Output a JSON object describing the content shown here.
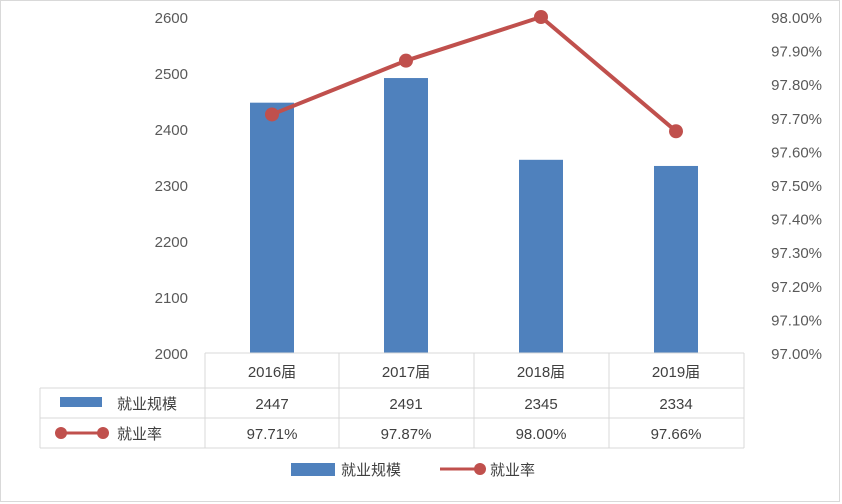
{
  "chart_data": {
    "type": "bar",
    "categories": [
      "2016届",
      "2017届",
      "2018届",
      "2019届"
    ],
    "series": [
      {
        "name": "就业规模",
        "type": "bar",
        "axis": "left",
        "values": [
          2447,
          2491,
          2345,
          2334
        ],
        "labels": [
          "2447",
          "2491",
          "2345",
          "2334"
        ],
        "color": "#4f81bd"
      },
      {
        "name": "就业率",
        "type": "line",
        "axis": "right",
        "values": [
          97.71,
          97.87,
          98.0,
          97.66
        ],
        "labels": [
          "97.71%",
          "97.87%",
          "98.00%",
          "97.66%"
        ],
        "color": "#c0504d"
      }
    ],
    "y_left": {
      "range": [
        2000,
        2600
      ],
      "ticks": [
        "2000",
        "2100",
        "2200",
        "2300",
        "2400",
        "2500",
        "2600"
      ]
    },
    "y_right": {
      "range": [
        97.0,
        98.0
      ],
      "ticks": [
        "97.00%",
        "97.10%",
        "97.20%",
        "97.30%",
        "97.40%",
        "97.50%",
        "97.60%",
        "97.70%",
        "97.80%",
        "97.90%",
        "98.00%"
      ]
    },
    "data_table": true,
    "legend": "bottom",
    "grid": false
  }
}
